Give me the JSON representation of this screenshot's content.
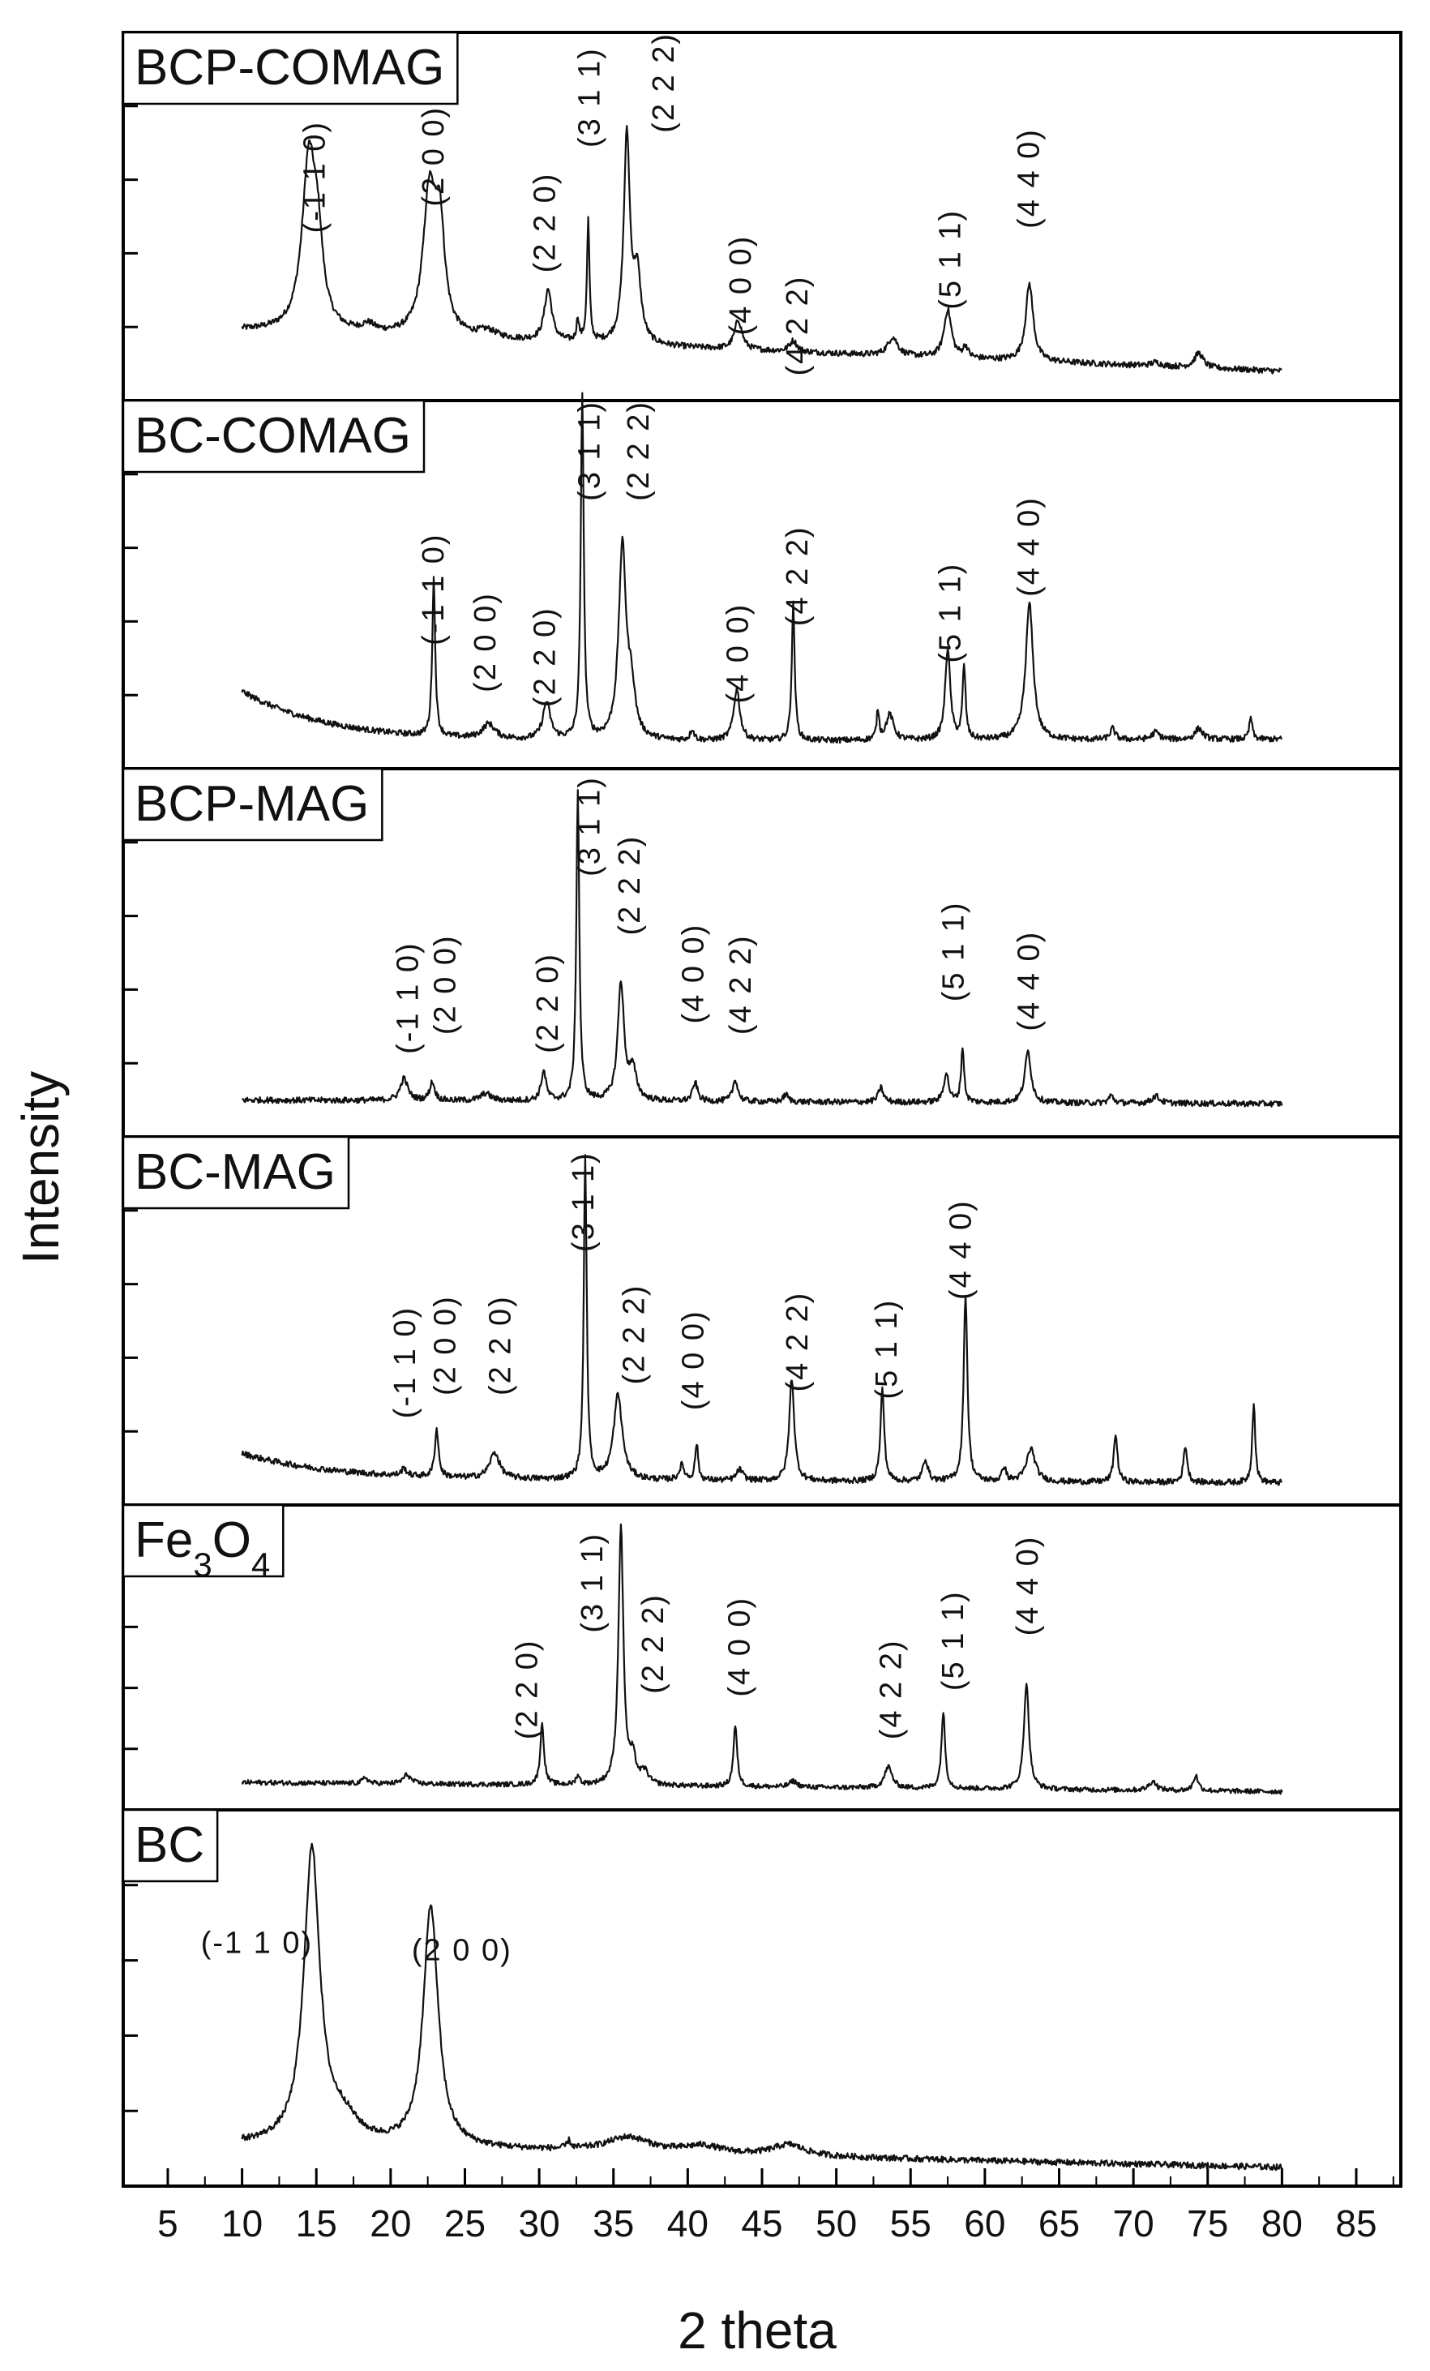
{
  "chart_data": {
    "type": "line",
    "xlabel": "2 theta",
    "ylabel": "Intensity",
    "xlim": [
      2,
      88
    ],
    "x_ticks": [
      5,
      10,
      15,
      20,
      25,
      30,
      35,
      40,
      45,
      50,
      55,
      60,
      65,
      70,
      75,
      80,
      85
    ],
    "x_tick_labels": [
      "5",
      "10",
      "15",
      "20",
      "25",
      "30",
      "35",
      "40",
      "45",
      "50",
      "55",
      "60",
      "65",
      "70",
      "75",
      "80",
      "85"
    ],
    "ylim": [
      0,
      1
    ],
    "y_ticks_per_panel": [
      0.2,
      0.4,
      0.6,
      0.8
    ],
    "x_range_of_data": [
      10,
      80
    ],
    "series": [
      {
        "name": "BCP-COMAG",
        "name_sub": "",
        "baseline": 0.19,
        "end_value": 0.08,
        "peaks": [
          [
            14.5,
            0.46,
            0.55
          ],
          [
            15.1,
            0.18,
            0.4
          ],
          [
            22.6,
            0.37,
            0.5
          ],
          [
            23.3,
            0.28,
            0.4
          ],
          [
            18.5,
            0.02,
            0.5
          ],
          [
            26.5,
            0.02,
            0.8
          ],
          [
            30.6,
            0.14,
            0.3
          ],
          [
            32.6,
            0.06,
            0.1
          ],
          [
            33.3,
            0.33,
            0.1
          ],
          [
            35.9,
            0.56,
            0.25
          ],
          [
            36.6,
            0.18,
            0.3
          ],
          [
            43.4,
            0.08,
            0.3
          ],
          [
            47.1,
            0.03,
            0.3
          ],
          [
            53.8,
            0.05,
            0.4
          ],
          [
            57.5,
            0.13,
            0.3
          ],
          [
            58.7,
            0.03,
            0.2
          ],
          [
            63.0,
            0.21,
            0.3
          ],
          [
            71.5,
            0.01,
            0.4
          ],
          [
            74.4,
            0.04,
            0.35
          ]
        ],
        "labels": [
          {
            "x": 15,
            "y": 0.76,
            "text": "(-1 1 0)"
          },
          {
            "x": 23,
            "y": 0.8,
            "text": "(2 0 0)"
          },
          {
            "x": 30.5,
            "y": 0.62,
            "text": "(2 2 0)"
          },
          {
            "x": 33.5,
            "y": 0.96,
            "text": "(3 1 1)"
          },
          {
            "x": 38.5,
            "y": 1.0,
            "text": "(2 2 2)"
          },
          {
            "x": 43.7,
            "y": 0.45,
            "text": "(4 0 0)"
          },
          {
            "x": 47.5,
            "y": 0.34,
            "text": "(4 2 2)"
          },
          {
            "x": 57.8,
            "y": 0.52,
            "text": "(5 1 1)"
          },
          {
            "x": 63.1,
            "y": 0.74,
            "text": "(4 4 0)"
          }
        ]
      },
      {
        "name": "BC-COMAG",
        "name_sub": "",
        "baseline": 0.07,
        "end_value": 0.08,
        "rising_background": 0.14,
        "peaks": [
          [
            22.9,
            0.43,
            0.12
          ],
          [
            26.6,
            0.04,
            0.5
          ],
          [
            30.5,
            0.1,
            0.3
          ],
          [
            32.9,
            0.93,
            0.12
          ],
          [
            35.6,
            0.52,
            0.3
          ],
          [
            36.2,
            0.12,
            0.3
          ],
          [
            40.3,
            0.03,
            0.15
          ],
          [
            43.3,
            0.14,
            0.25
          ],
          [
            47.1,
            0.37,
            0.12
          ],
          [
            52.8,
            0.08,
            0.1
          ],
          [
            53.6,
            0.07,
            0.3
          ],
          [
            57.5,
            0.25,
            0.2
          ],
          [
            58.6,
            0.2,
            0.12
          ],
          [
            63.0,
            0.37,
            0.3
          ],
          [
            68.6,
            0.03,
            0.2
          ],
          [
            71.5,
            0.02,
            0.3
          ],
          [
            74.4,
            0.03,
            0.3
          ],
          [
            77.9,
            0.06,
            0.12
          ]
        ],
        "labels": [
          {
            "x": 23,
            "y": 0.64,
            "text": "(-1 1 0)"
          },
          {
            "x": 26.5,
            "y": 0.48,
            "text": "(2 0 0)"
          },
          {
            "x": 30.5,
            "y": 0.44,
            "text": "(2 2 0)"
          },
          {
            "x": 33.5,
            "y": 1.0,
            "text": "(3 1 1)"
          },
          {
            "x": 36.8,
            "y": 1.0,
            "text": "(2 2 2)"
          },
          {
            "x": 43.5,
            "y": 0.45,
            "text": "(4 0 0)"
          },
          {
            "x": 47.5,
            "y": 0.66,
            "text": "(4 2 2)"
          },
          {
            "x": 57.8,
            "y": 0.56,
            "text": "(5 1 1)"
          },
          {
            "x": 63.1,
            "y": 0.74,
            "text": "(4 4 0)"
          }
        ]
      },
      {
        "name": "BCP-MAG",
        "name_sub": "",
        "baseline": 0.1,
        "end_value": 0.09,
        "peaks": [
          [
            20.9,
            0.06,
            0.3
          ],
          [
            22.8,
            0.05,
            0.2
          ],
          [
            26.4,
            0.02,
            0.4
          ],
          [
            30.3,
            0.08,
            0.2
          ],
          [
            32.6,
            0.84,
            0.12
          ],
          [
            35.5,
            0.32,
            0.25
          ],
          [
            36.3,
            0.08,
            0.3
          ],
          [
            40.5,
            0.05,
            0.2
          ],
          [
            43.2,
            0.06,
            0.2
          ],
          [
            46.6,
            0.02,
            0.2
          ],
          [
            53.0,
            0.04,
            0.2
          ],
          [
            57.4,
            0.08,
            0.2
          ],
          [
            58.5,
            0.15,
            0.12
          ],
          [
            62.9,
            0.14,
            0.25
          ],
          [
            68.5,
            0.02,
            0.2
          ],
          [
            71.5,
            0.02,
            0.3
          ]
        ],
        "labels": [
          {
            "x": 21.3,
            "y": 0.53,
            "text": "(-1 1 0)"
          },
          {
            "x": 23.8,
            "y": 0.55,
            "text": "(2 0 0)"
          },
          {
            "x": 30.7,
            "y": 0.5,
            "text": "(2 2 0)"
          },
          {
            "x": 33.5,
            "y": 0.98,
            "text": "(3 1 1)"
          },
          {
            "x": 36.2,
            "y": 0.82,
            "text": "(2 2 2)"
          },
          {
            "x": 40.5,
            "y": 0.58,
            "text": "(4 0 0)"
          },
          {
            "x": 43.7,
            "y": 0.55,
            "text": "(4 2 2)"
          },
          {
            "x": 58,
            "y": 0.64,
            "text": "(5 1 1)"
          },
          {
            "x": 63.1,
            "y": 0.56,
            "text": "(4 4 0)"
          }
        ]
      },
      {
        "name": "BC-MAG",
        "name_sub": "",
        "baseline": 0.07,
        "end_value": 0.06,
        "rising_background": 0.07,
        "peaks": [
          [
            20.9,
            0.02,
            0.2
          ],
          [
            23.1,
            0.13,
            0.15
          ],
          [
            27.0,
            0.07,
            0.4
          ],
          [
            33.1,
            0.87,
            0.12
          ],
          [
            35.3,
            0.23,
            0.35
          ],
          [
            39.6,
            0.04,
            0.2
          ],
          [
            40.6,
            0.1,
            0.12
          ],
          [
            43.5,
            0.03,
            0.25
          ],
          [
            47.0,
            0.28,
            0.2
          ],
          [
            53.1,
            0.25,
            0.15
          ],
          [
            56.0,
            0.06,
            0.2
          ],
          [
            58.7,
            0.51,
            0.15
          ],
          [
            61.3,
            0.04,
            0.15
          ],
          [
            63.1,
            0.09,
            0.35
          ],
          [
            68.8,
            0.13,
            0.15
          ],
          [
            73.5,
            0.1,
            0.15
          ],
          [
            78.1,
            0.22,
            0.12
          ]
        ],
        "labels": [
          {
            "x": 21.1,
            "y": 0.54,
            "text": "(-1 1 0)"
          },
          {
            "x": 23.8,
            "y": 0.57,
            "text": "(2 0 0)"
          },
          {
            "x": 27.5,
            "y": 0.57,
            "text": "(2 2 0)"
          },
          {
            "x": 33.1,
            "y": 0.96,
            "text": "(3 1 1)"
          },
          {
            "x": 36.5,
            "y": 0.6,
            "text": "(2 2 2)"
          },
          {
            "x": 40.5,
            "y": 0.53,
            "text": "(4 0 0)"
          },
          {
            "x": 47.5,
            "y": 0.58,
            "text": "(4 2 2)"
          },
          {
            "x": 53.5,
            "y": 0.56,
            "text": "(5 1 1)"
          },
          {
            "x": 58.5,
            "y": 0.83,
            "text": "(4 4 0)"
          }
        ]
      },
      {
        "name": "Fe",
        "name_sub": "3",
        "name_tail": "O",
        "name_sub2": "4",
        "baseline": 0.09,
        "end_value": 0.06,
        "peaks": [
          [
            18.3,
            0.02,
            0.2
          ],
          [
            21.1,
            0.03,
            0.3
          ],
          [
            30.2,
            0.2,
            0.15
          ],
          [
            32.6,
            0.03,
            0.15
          ],
          [
            35.5,
            0.85,
            0.2
          ],
          [
            36.3,
            0.08,
            0.25
          ],
          [
            37.1,
            0.04,
            0.3
          ],
          [
            43.2,
            0.2,
            0.15
          ],
          [
            47.1,
            0.02,
            0.3
          ],
          [
            53.5,
            0.07,
            0.3
          ],
          [
            57.2,
            0.25,
            0.15
          ],
          [
            62.8,
            0.35,
            0.2
          ],
          [
            71.3,
            0.03,
            0.3
          ],
          [
            74.2,
            0.05,
            0.2
          ]
        ],
        "labels": [
          {
            "x": 29.3,
            "y": 0.56,
            "text": "(2 2 0)"
          },
          {
            "x": 33.7,
            "y": 0.91,
            "text": "(3 1 1)"
          },
          {
            "x": 37.8,
            "y": 0.71,
            "text": "(2 2 2)"
          },
          {
            "x": 43.6,
            "y": 0.7,
            "text": "(4 0 0)"
          },
          {
            "x": 53.8,
            "y": 0.56,
            "text": "(4 2 2)"
          },
          {
            "x": 58,
            "y": 0.72,
            "text": "(5 1 1)"
          },
          {
            "x": 63,
            "y": 0.9,
            "text": "(4 4 0)"
          }
        ]
      },
      {
        "name": "BC",
        "name_sub": "",
        "baseline": 0.11,
        "end_value": 0.05,
        "peaks": [
          [
            14.7,
            0.78,
            0.65
          ],
          [
            22.7,
            0.64,
            0.6
          ],
          [
            16.8,
            0.06,
            1.2
          ],
          [
            32.0,
            0.02,
            0.15
          ],
          [
            36.0,
            0.04,
            1.8
          ],
          [
            41.0,
            0.02,
            1.5
          ],
          [
            46.8,
            0.03,
            1.3
          ]
        ],
        "labels": [
          {
            "x": 11.0,
            "y": 0.62,
            "text": "(-1 1 0)",
            "horizontal": true
          },
          {
            "x": 24.8,
            "y": 0.6,
            "text": "(2 0 0)",
            "horizontal": true
          }
        ]
      }
    ]
  }
}
